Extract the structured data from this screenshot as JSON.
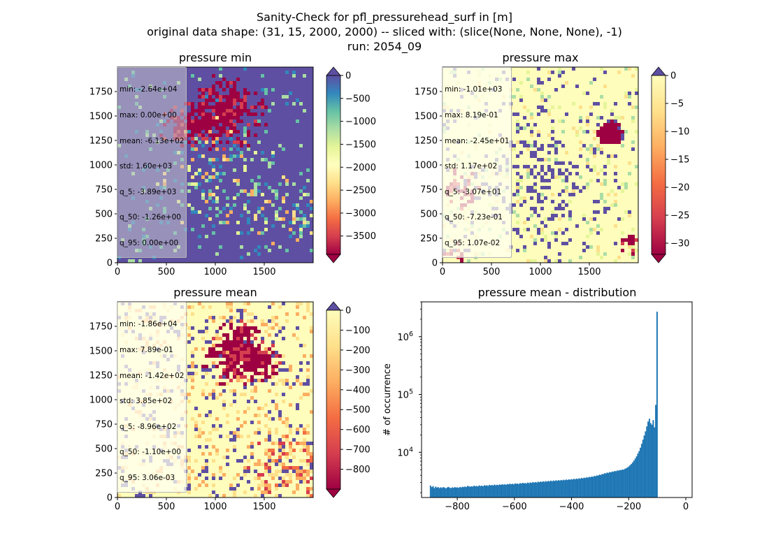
{
  "figure": {
    "suptitle": [
      "Sanity-Check for pfl_pressurehead_surf in [m]",
      "original data shape: (31, 15, 2000, 2000) -- sliced with: (slice(None, None, None), -1)",
      "run: 2054_09"
    ]
  },
  "panels": [
    {
      "title": "pressure min",
      "cmap": "Spectral",
      "colorbar_ticks": [
        0,
        -500,
        -1000,
        -1500,
        -2000,
        -2500,
        -3000,
        -3500
      ],
      "colorbar_range": [
        -3900,
        0
      ],
      "colorbar_extend": "both",
      "x_ticks": [
        0,
        500,
        1000,
        1500
      ],
      "y_ticks": [
        0,
        250,
        500,
        750,
        1000,
        1250,
        1500,
        1750
      ],
      "stats": [
        "min: -2.64e+04",
        "max: 0.00e+00",
        "mean: -6.13e+02",
        "std: 1.60e+03",
        "q_5: -3.89e+03",
        "q_50: -1.26e+00",
        "q_95: 0.00e+00"
      ],
      "background_color": "#5e4fa2",
      "dominant": "high values (violet background) with red patches in the north"
    },
    {
      "title": "pressure max",
      "cmap": "Spectral",
      "colorbar_ticks": [
        0,
        -5,
        -10,
        -15,
        -20,
        -25,
        -30
      ],
      "colorbar_range": [
        -32,
        0
      ],
      "colorbar_extend": "both",
      "x_ticks": [
        0,
        500,
        1000,
        1500
      ],
      "y_ticks": [
        0,
        250,
        500,
        750,
        1000,
        1250,
        1500,
        1750
      ],
      "stats": [
        "min: -1.01e+03",
        "max: 8.19e-01",
        "mean: -2.45e+01",
        "std: 1.17e+02",
        "q_5: -3.07e+01",
        "q_50: -7.23e-01",
        "q_95: 1.07e-02"
      ],
      "background_color": "#fefdbc",
      "dominant": "pale yellow background with scattered violet speckles"
    },
    {
      "title": "pressure mean",
      "cmap": "Spectral",
      "colorbar_ticks": [
        0,
        -100,
        -200,
        -300,
        -400,
        -500,
        -600,
        -700,
        -800
      ],
      "colorbar_range": [
        -900,
        0
      ],
      "colorbar_extend": "both",
      "x_ticks": [
        0,
        500,
        1000,
        1500
      ],
      "y_ticks": [
        0,
        250,
        500,
        750,
        1000,
        1250,
        1500,
        1750
      ],
      "stats": [
        "min: -1.86e+04",
        "max: 7.89e-01",
        "mean: -1.42e+02",
        "std: 3.85e+02",
        "q_5: -8.96e+02",
        "q_50: -1.10e+00",
        "q_95: 3.06e-03"
      ],
      "background_color": "#fefdbc",
      "dominant": "pale yellow background with red patch in the north and orange in south-east"
    }
  ],
  "chart_data": {
    "type": "bar",
    "title": "pressure mean - distribution",
    "xlabel": "",
    "ylabel": "# of occurrence",
    "y_scale": "log",
    "xlim": [
      -925,
      22
    ],
    "ylim": [
      1650,
      4000000
    ],
    "x_ticks": [
      -800,
      -600,
      -400,
      -200,
      0
    ],
    "y_tick_labels": [
      {
        "base": "10",
        "exp": "4",
        "value": 10000
      },
      {
        "base": "10",
        "exp": "5",
        "value": 100000
      },
      {
        "base": "10",
        "exp": "6",
        "value": 1000000
      }
    ],
    "bin_width": 4.48,
    "bin_start": -896,
    "color": "#1f77b4",
    "values": [
      2650,
      2500,
      2600,
      2400,
      2550,
      2450,
      2500,
      2400,
      2480,
      2420,
      2500,
      2450,
      2380,
      2460,
      2520,
      2440,
      2400,
      2470,
      2430,
      2500,
      2450,
      2480,
      2420,
      2510,
      2460,
      2540,
      2490,
      2560,
      2500,
      2620,
      2580,
      2530,
      2590,
      2550,
      2640,
      2580,
      2620,
      2560,
      2680,
      2600,
      2650,
      2580,
      2700,
      2640,
      2690,
      2620,
      2730,
      2670,
      2720,
      2660,
      2760,
      2690,
      2740,
      2700,
      2780,
      2720,
      2810,
      2750,
      2790,
      2740,
      2830,
      2780,
      2860,
      2800,
      2850,
      2790,
      2900,
      2840,
      2880,
      2820,
      2930,
      2870,
      2960,
      2900,
      2940,
      2880,
      3000,
      2920,
      3010,
      2950,
      3060,
      2980,
      3050,
      2990,
      3100,
      3030,
      3120,
      3060,
      3150,
      3080,
      3170,
      3100,
      3200,
      3130,
      3230,
      3150,
      3250,
      3180,
      3280,
      3200,
      3300,
      3230,
      3320,
      3260,
      3350,
      3280,
      3380,
      3310,
      3410,
      3340,
      3440,
      3370,
      3480,
      3400,
      3510,
      3440,
      3550,
      3480,
      3600,
      3530,
      3640,
      3580,
      3700,
      3640,
      3760,
      3700,
      3820,
      3760,
      3900,
      3850,
      3980,
      3950,
      4100,
      4050,
      4200,
      4180,
      4350,
      4300,
      4450,
      4400,
      4550,
      4500,
      4650,
      4600,
      4750,
      4700,
      4850,
      4800,
      4950,
      4900,
      5050,
      5000,
      5200,
      5300,
      5500,
      5700,
      6000,
      6300,
      6700,
      7200,
      7800,
      8500,
      9500,
      10500,
      12000,
      14000,
      16500,
      19500,
      23000,
      28000,
      34000,
      38000,
      32000,
      30000,
      36000,
      27000,
      66000,
      2700000
    ]
  }
}
